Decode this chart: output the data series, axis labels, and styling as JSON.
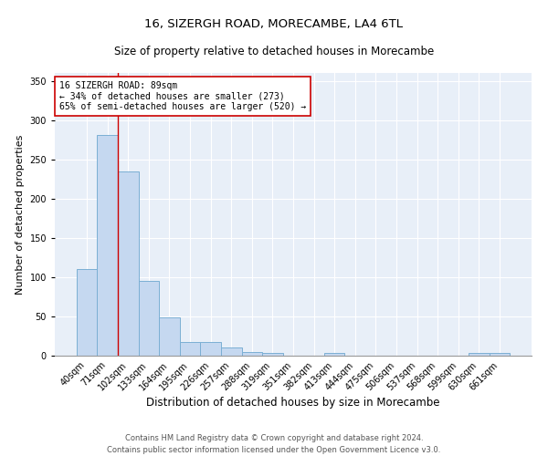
{
  "title1": "16, SIZERGH ROAD, MORECAMBE, LA4 6TL",
  "title2": "Size of property relative to detached houses in Morecambe",
  "xlabel": "Distribution of detached houses by size in Morecambe",
  "ylabel": "Number of detached properties",
  "categories": [
    "40sqm",
    "71sqm",
    "102sqm",
    "133sqm",
    "164sqm",
    "195sqm",
    "226sqm",
    "257sqm",
    "288sqm",
    "319sqm",
    "351sqm",
    "382sqm",
    "413sqm",
    "444sqm",
    "475sqm",
    "506sqm",
    "537sqm",
    "568sqm",
    "599sqm",
    "630sqm",
    "661sqm"
  ],
  "values": [
    110,
    281,
    235,
    95,
    49,
    18,
    18,
    11,
    5,
    3,
    0,
    0,
    4,
    0,
    0,
    0,
    0,
    0,
    0,
    3,
    3
  ],
  "bar_color": "#c5d8f0",
  "bar_edge_color": "#7bafd4",
  "vline_x": 1.5,
  "vline_color": "#cc0000",
  "annotation_text": "16 SIZERGH ROAD: 89sqm\n← 34% of detached houses are smaller (273)\n65% of semi-detached houses are larger (520) →",
  "annotation_box_color": "white",
  "annotation_box_edge": "#cc0000",
  "ylim": [
    0,
    360
  ],
  "yticks": [
    0,
    50,
    100,
    150,
    200,
    250,
    300,
    350
  ],
  "bg_color": "#e8eff8",
  "grid_color": "#ffffff",
  "footer": "Contains HM Land Registry data © Crown copyright and database right 2024.\nContains public sector information licensed under the Open Government Licence v3.0.",
  "title1_fontsize": 9.5,
  "title2_fontsize": 8.5,
  "xlabel_fontsize": 8.5,
  "ylabel_fontsize": 8,
  "tick_fontsize": 7,
  "footer_fontsize": 6,
  "annot_fontsize": 7
}
